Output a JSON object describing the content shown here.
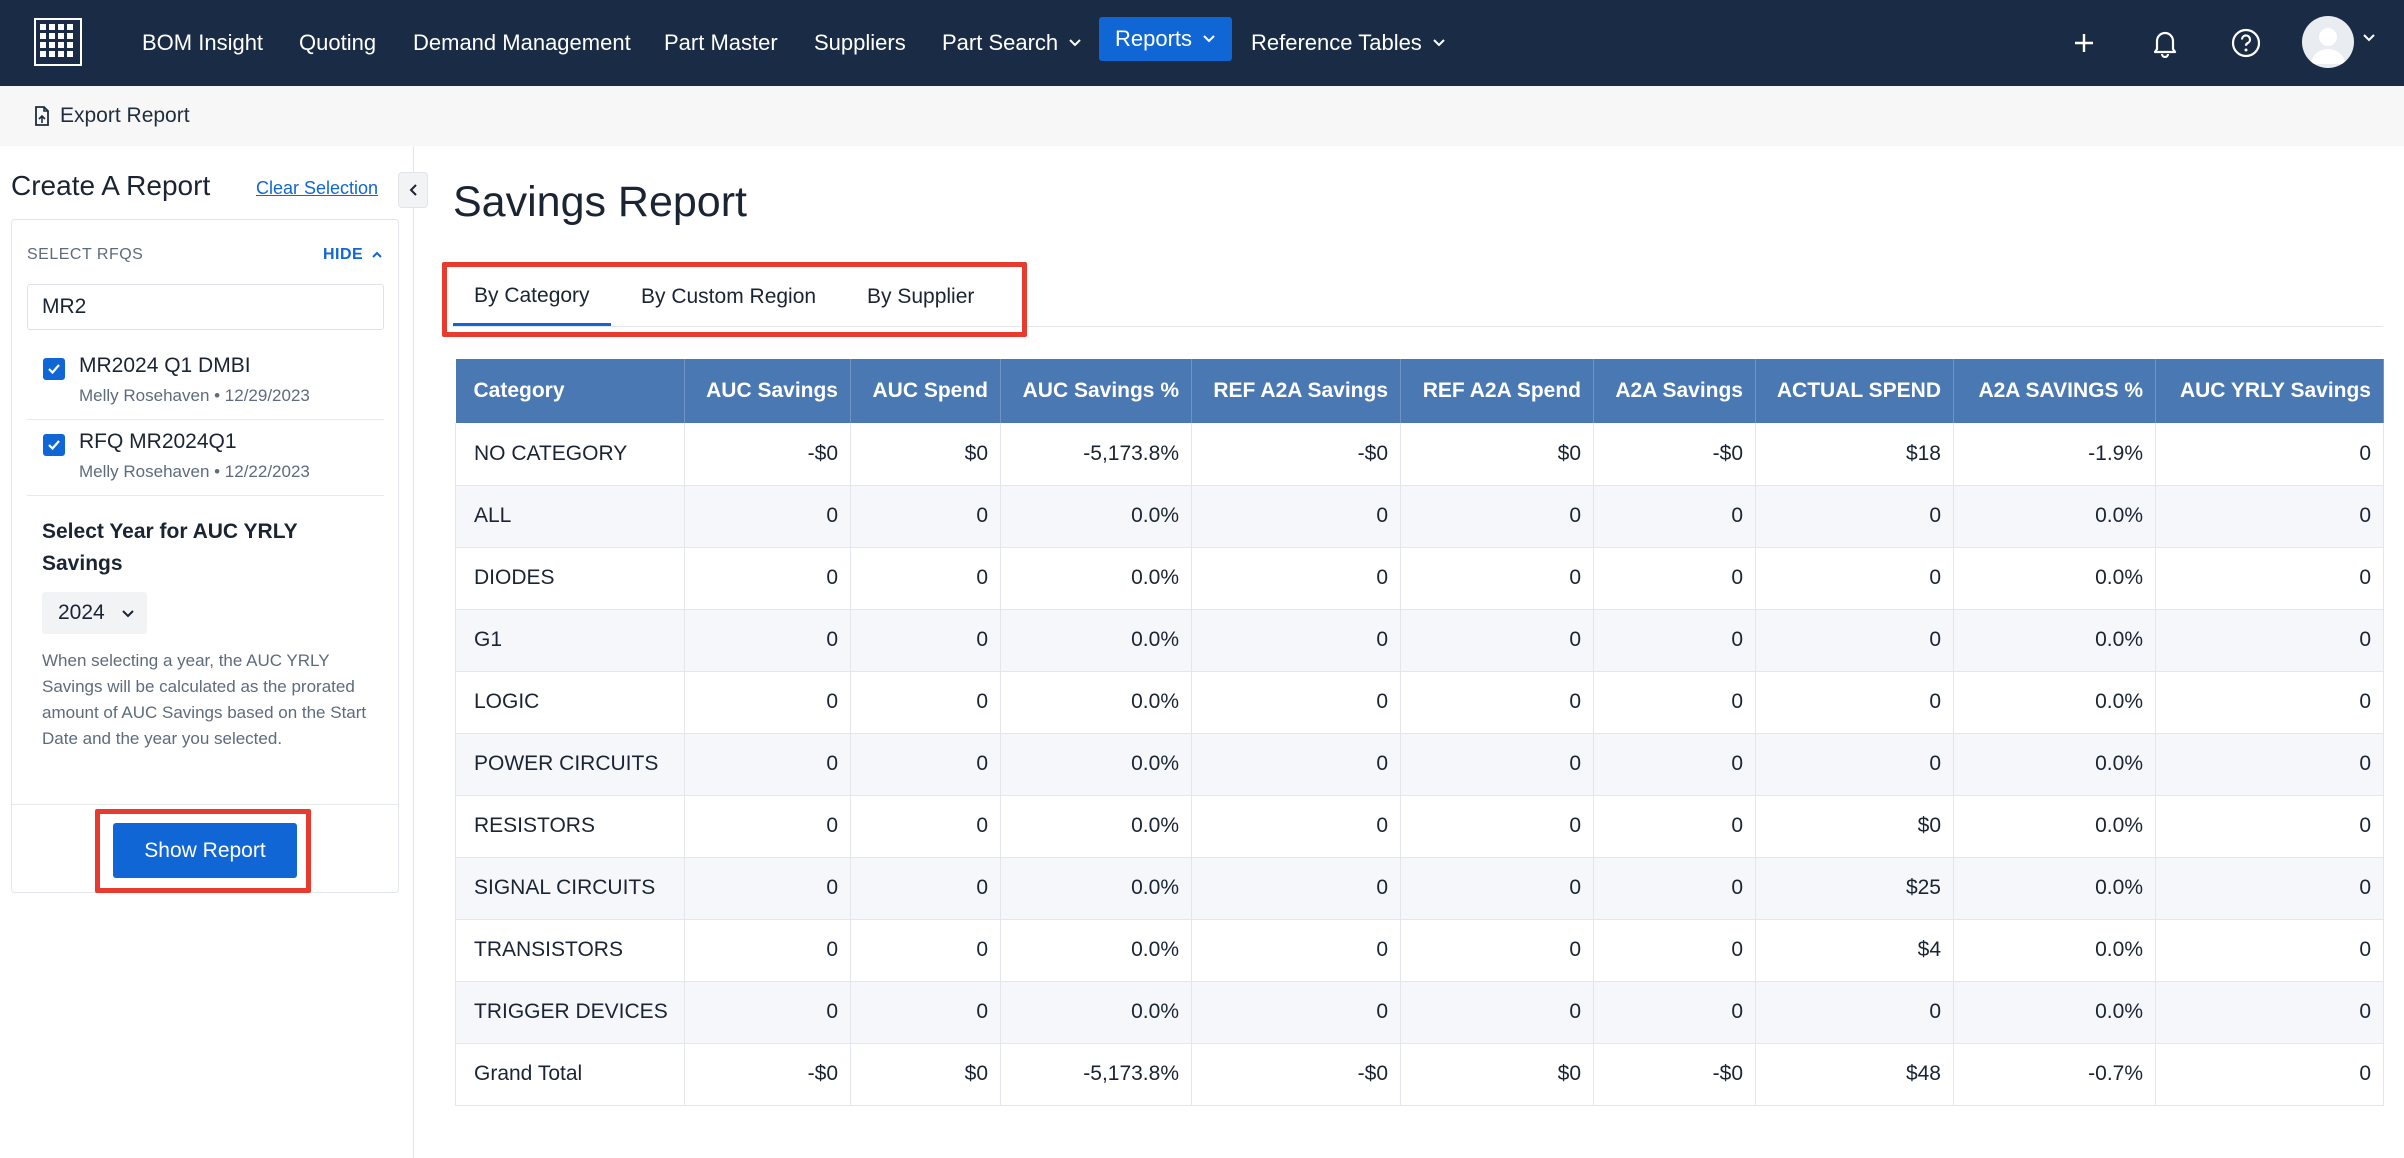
{
  "nav": {
    "items": [
      "BOM Insight",
      "Quoting",
      "Demand Management",
      "Part Master",
      "Suppliers",
      "Part Search",
      "Reports",
      "Reference Tables"
    ],
    "active": "Reports"
  },
  "toolbar": {
    "export_label": "Export Report"
  },
  "sidebar": {
    "title": "Create A Report",
    "clear_label": "Clear Selection",
    "rfq_section_label": "SELECT RFQS",
    "hide_label": "HIDE",
    "search_value": "MR2",
    "rfqs": [
      {
        "name": "MR2024 Q1 DMBI",
        "meta": "Melly Rosehaven • 12/29/2023",
        "checked": true
      },
      {
        "name": "RFQ MR2024Q1",
        "meta": "Melly Rosehaven • 12/22/2023",
        "checked": true
      }
    ],
    "year_title": "Select Year for AUC YRLY Savings",
    "year_value": "2024",
    "year_help": "When selecting a year, the AUC YRLY Savings will be calculated as the prorated amount of AUC Savings based on the Start Date and the year you selected.",
    "show_report_label": "Show Report"
  },
  "main": {
    "title": "Savings Report",
    "tabs": [
      "By Category",
      "By Custom Region",
      "By Supplier"
    ],
    "active_tab": "By Category",
    "table": {
      "headers": [
        "Category",
        "AUC Savings",
        "AUC Spend",
        "AUC Savings %",
        "REF A2A Savings",
        "REF A2A Spend",
        "A2A Savings",
        "ACTUAL SPEND",
        "A2A SAVINGS %",
        "AUC YRLY Savings"
      ],
      "rows": [
        [
          "NO CATEGORY",
          "-$0",
          "$0",
          "-5,173.8%",
          "-$0",
          "$0",
          "-$0",
          "$18",
          "-1.9%",
          "0"
        ],
        [
          "ALL",
          "0",
          "0",
          "0.0%",
          "0",
          "0",
          "0",
          "0",
          "0.0%",
          "0"
        ],
        [
          "DIODES",
          "0",
          "0",
          "0.0%",
          "0",
          "0",
          "0",
          "0",
          "0.0%",
          "0"
        ],
        [
          "G1",
          "0",
          "0",
          "0.0%",
          "0",
          "0",
          "0",
          "0",
          "0.0%",
          "0"
        ],
        [
          "LOGIC",
          "0",
          "0",
          "0.0%",
          "0",
          "0",
          "0",
          "0",
          "0.0%",
          "0"
        ],
        [
          "POWER CIRCUITS",
          "0",
          "0",
          "0.0%",
          "0",
          "0",
          "0",
          "0",
          "0.0%",
          "0"
        ],
        [
          "RESISTORS",
          "0",
          "0",
          "0.0%",
          "0",
          "0",
          "0",
          "$0",
          "0.0%",
          "0"
        ],
        [
          "SIGNAL CIRCUITS",
          "0",
          "0",
          "0.0%",
          "0",
          "0",
          "0",
          "$25",
          "0.0%",
          "0"
        ],
        [
          "TRANSISTORS",
          "0",
          "0",
          "0.0%",
          "0",
          "0",
          "0",
          "$4",
          "0.0%",
          "0"
        ],
        [
          "TRIGGER DEVICES",
          "0",
          "0",
          "0.0%",
          "0",
          "0",
          "0",
          "0",
          "0.0%",
          "0"
        ],
        [
          "Grand Total",
          "-$0",
          "$0",
          "-5,173.8%",
          "-$0",
          "$0",
          "-$0",
          "$48",
          "-0.7%",
          "0"
        ]
      ]
    }
  },
  "colors": {
    "nav_bg": "#1a2b45",
    "accent": "#1166d6",
    "table_header": "#4a78b2",
    "highlight": "#e63b2e"
  },
  "icons": [
    "grid-logo-icon",
    "plus-icon",
    "bell-icon",
    "help-icon",
    "avatar-icon",
    "chevron-down-icon",
    "export-doc-icon",
    "chevron-left-icon",
    "checkmark-icon"
  ]
}
